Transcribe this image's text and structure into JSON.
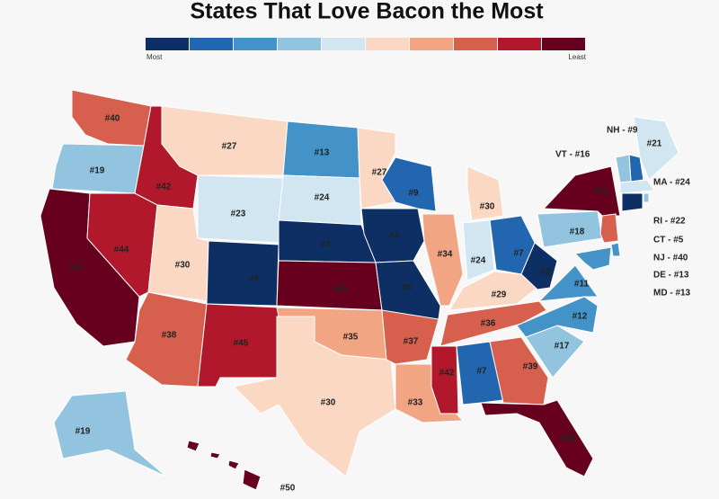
{
  "title": "States That Love Bacon the Most",
  "legend": {
    "colors": [
      "#0d2f63",
      "#2266b0",
      "#4393c8",
      "#92c4e0",
      "#d2e6f2",
      "#fbd8c4",
      "#f2a582",
      "#d6604d",
      "#b2182b",
      "#67001f"
    ],
    "low_label": "Most",
    "high_label": "Least"
  },
  "states": [
    {
      "label": "#40",
      "color": "#d6604d"
    },
    {
      "label": "#19",
      "color": "#92c4e0"
    },
    {
      "label": "#47",
      "color": "#67001f"
    },
    {
      "label": "#42",
      "color": "#b2182b"
    },
    {
      "label": "#44",
      "color": "#b2182b"
    },
    {
      "label": "#27",
      "color": "#fbd8c4"
    },
    {
      "label": "#23",
      "color": "#d2e6f2"
    },
    {
      "label": "#30",
      "color": "#fbd8c4"
    },
    {
      "label": "#38",
      "color": "#d6604d"
    },
    {
      "label": "#4",
      "color": "#0d2f63"
    },
    {
      "label": "#45",
      "color": "#b2182b"
    },
    {
      "label": "#13",
      "color": "#4393c8"
    },
    {
      "label": "#24",
      "color": "#d2e6f2"
    },
    {
      "label": "#1",
      "color": "#0d2f63"
    },
    {
      "label": "#49",
      "color": "#67001f"
    },
    {
      "label": "#35",
      "color": "#f2a582"
    },
    {
      "label": "#30",
      "color": "#fbd8c4"
    },
    {
      "label": "#27",
      "color": "#fbd8c4"
    },
    {
      "label": "#3",
      "color": "#0d2f63"
    },
    {
      "label": "#5",
      "color": "#0d2f63"
    },
    {
      "label": "#37",
      "color": "#d6604d"
    },
    {
      "label": "#33",
      "color": "#f2a582"
    },
    {
      "label": "#9",
      "color": "#2266b0"
    },
    {
      "label": "#34",
      "color": "#f2a582"
    },
    {
      "label": "#30",
      "color": "#fbd8c4"
    },
    {
      "label": "#24",
      "color": "#d2e6f2"
    },
    {
      "label": "#7",
      "color": "#2266b0"
    },
    {
      "label": "#29",
      "color": "#fbd8c4"
    },
    {
      "label": "#36",
      "color": "#d6604d"
    },
    {
      "label": "#42",
      "color": "#b2182b"
    },
    {
      "label": "#7",
      "color": "#2266b0"
    },
    {
      "label": "#39",
      "color": "#d6604d"
    },
    {
      "label": "#48",
      "color": "#67001f"
    },
    {
      "label": "#17",
      "color": "#92c4e0"
    },
    {
      "label": "#12",
      "color": "#4393c8"
    },
    {
      "label": "#11",
      "color": "#4393c8"
    },
    {
      "label": "#2",
      "color": "#0d2f63"
    },
    {
      "label": "#18",
      "color": "#92c4e0"
    },
    {
      "label": "#46",
      "color": "#67001f"
    },
    {
      "label": "#21",
      "color": "#d2e6f2"
    },
    {
      "label": "#19",
      "color": "#92c4e0"
    },
    {
      "label": "#50",
      "color": "#67001f"
    },
    {
      "color": "#2266b0"
    },
    {
      "color": "#92c4e0"
    },
    {
      "color": "#d2e6f2"
    },
    {
      "color": "#92c4e0"
    },
    {
      "color": "#0d2f63"
    },
    {
      "color": "#d6604d"
    },
    {
      "color": "#4393c8"
    },
    {
      "color": "#4393c8"
    }
  ],
  "callouts": [
    "NH - #9",
    "VT - #16",
    "MA - #24",
    "RI - #22",
    "CT - #5",
    "NJ - #40",
    "DE - #13",
    "MD - #13"
  ]
}
